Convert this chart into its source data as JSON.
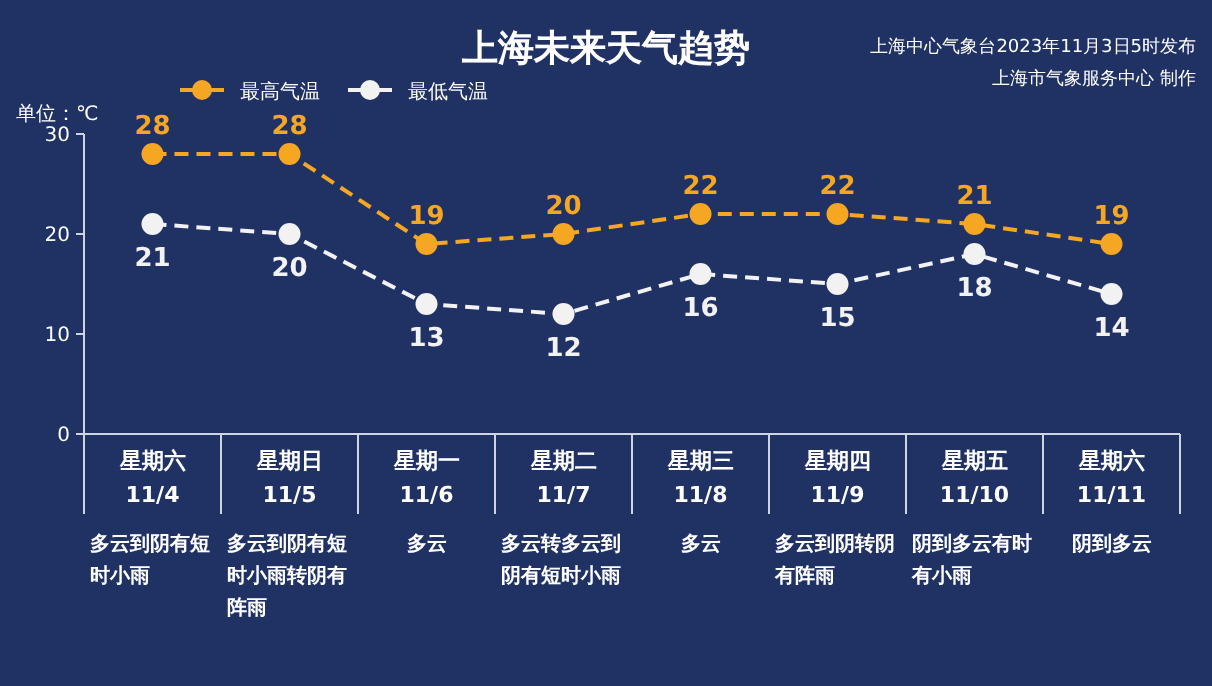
{
  "chart_data": {
    "type": "line",
    "title": "上海未来天气趋势",
    "ylabel": "单位：℃",
    "categories": [
      "星期六\n11/4",
      "星期日\n11/5",
      "星期一\n11/6",
      "星期二\n11/7",
      "星期三\n11/8",
      "星期四\n11/9",
      "星期五\n11/10",
      "星期六\n11/11"
    ],
    "series": [
      {
        "name": "最高气温",
        "color": "#f5a623",
        "values": [
          28,
          28,
          19,
          20,
          22,
          22,
          21,
          19
        ]
      },
      {
        "name": "最低气温",
        "color": "#f2f2f2",
        "values": [
          21,
          20,
          13,
          12,
          16,
          15,
          18,
          14
        ]
      }
    ],
    "ylim": [
      0,
      30
    ],
    "yticks": [
      0,
      10,
      20,
      30
    ],
    "grid": false,
    "legend": "top left",
    "marker": "circle",
    "line_style": "dashed",
    "data_labels": true,
    "annotations": [
      "多云到阴有短时小雨",
      "多云到阴有短时小雨转阴有阵雨",
      "多云",
      "多云转多云到阴有短时小雨",
      "多云",
      "多云到阴转阴有阵雨",
      "阴到多云有时有小雨",
      "阴到多云",
      "上海中心气象台2023年11月3日5时发布",
      "上海市气象服务中心 制作"
    ]
  }
}
